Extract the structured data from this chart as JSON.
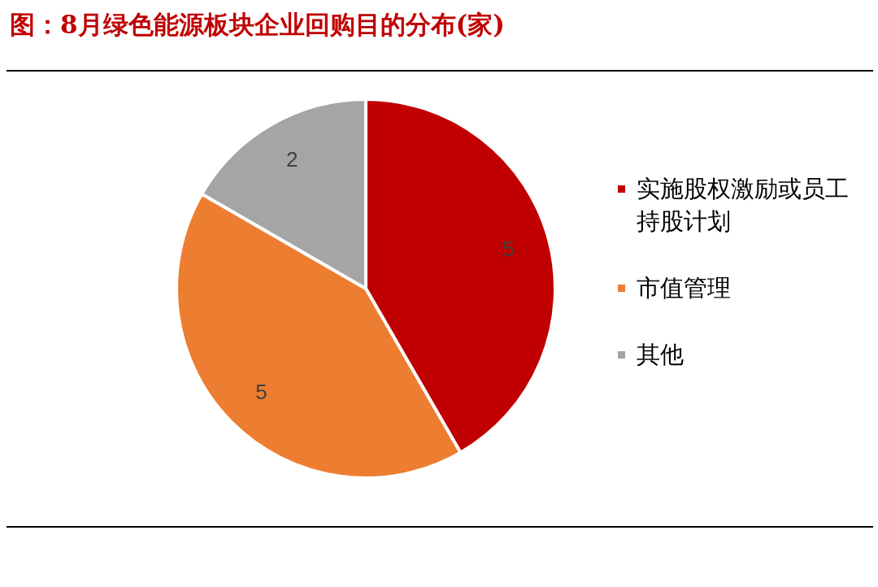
{
  "chart_data": {
    "type": "pie",
    "title": "图：8月绿色能源板块企业回购目的分布(家)",
    "categories": [
      "实施股权激励或员工持股计划",
      "市值管理",
      "其他"
    ],
    "values": [
      5,
      5,
      2
    ],
    "colors": [
      "#c00000",
      "#ed7d31",
      "#a5a5a5"
    ],
    "data_labels": true,
    "legend": "right"
  }
}
